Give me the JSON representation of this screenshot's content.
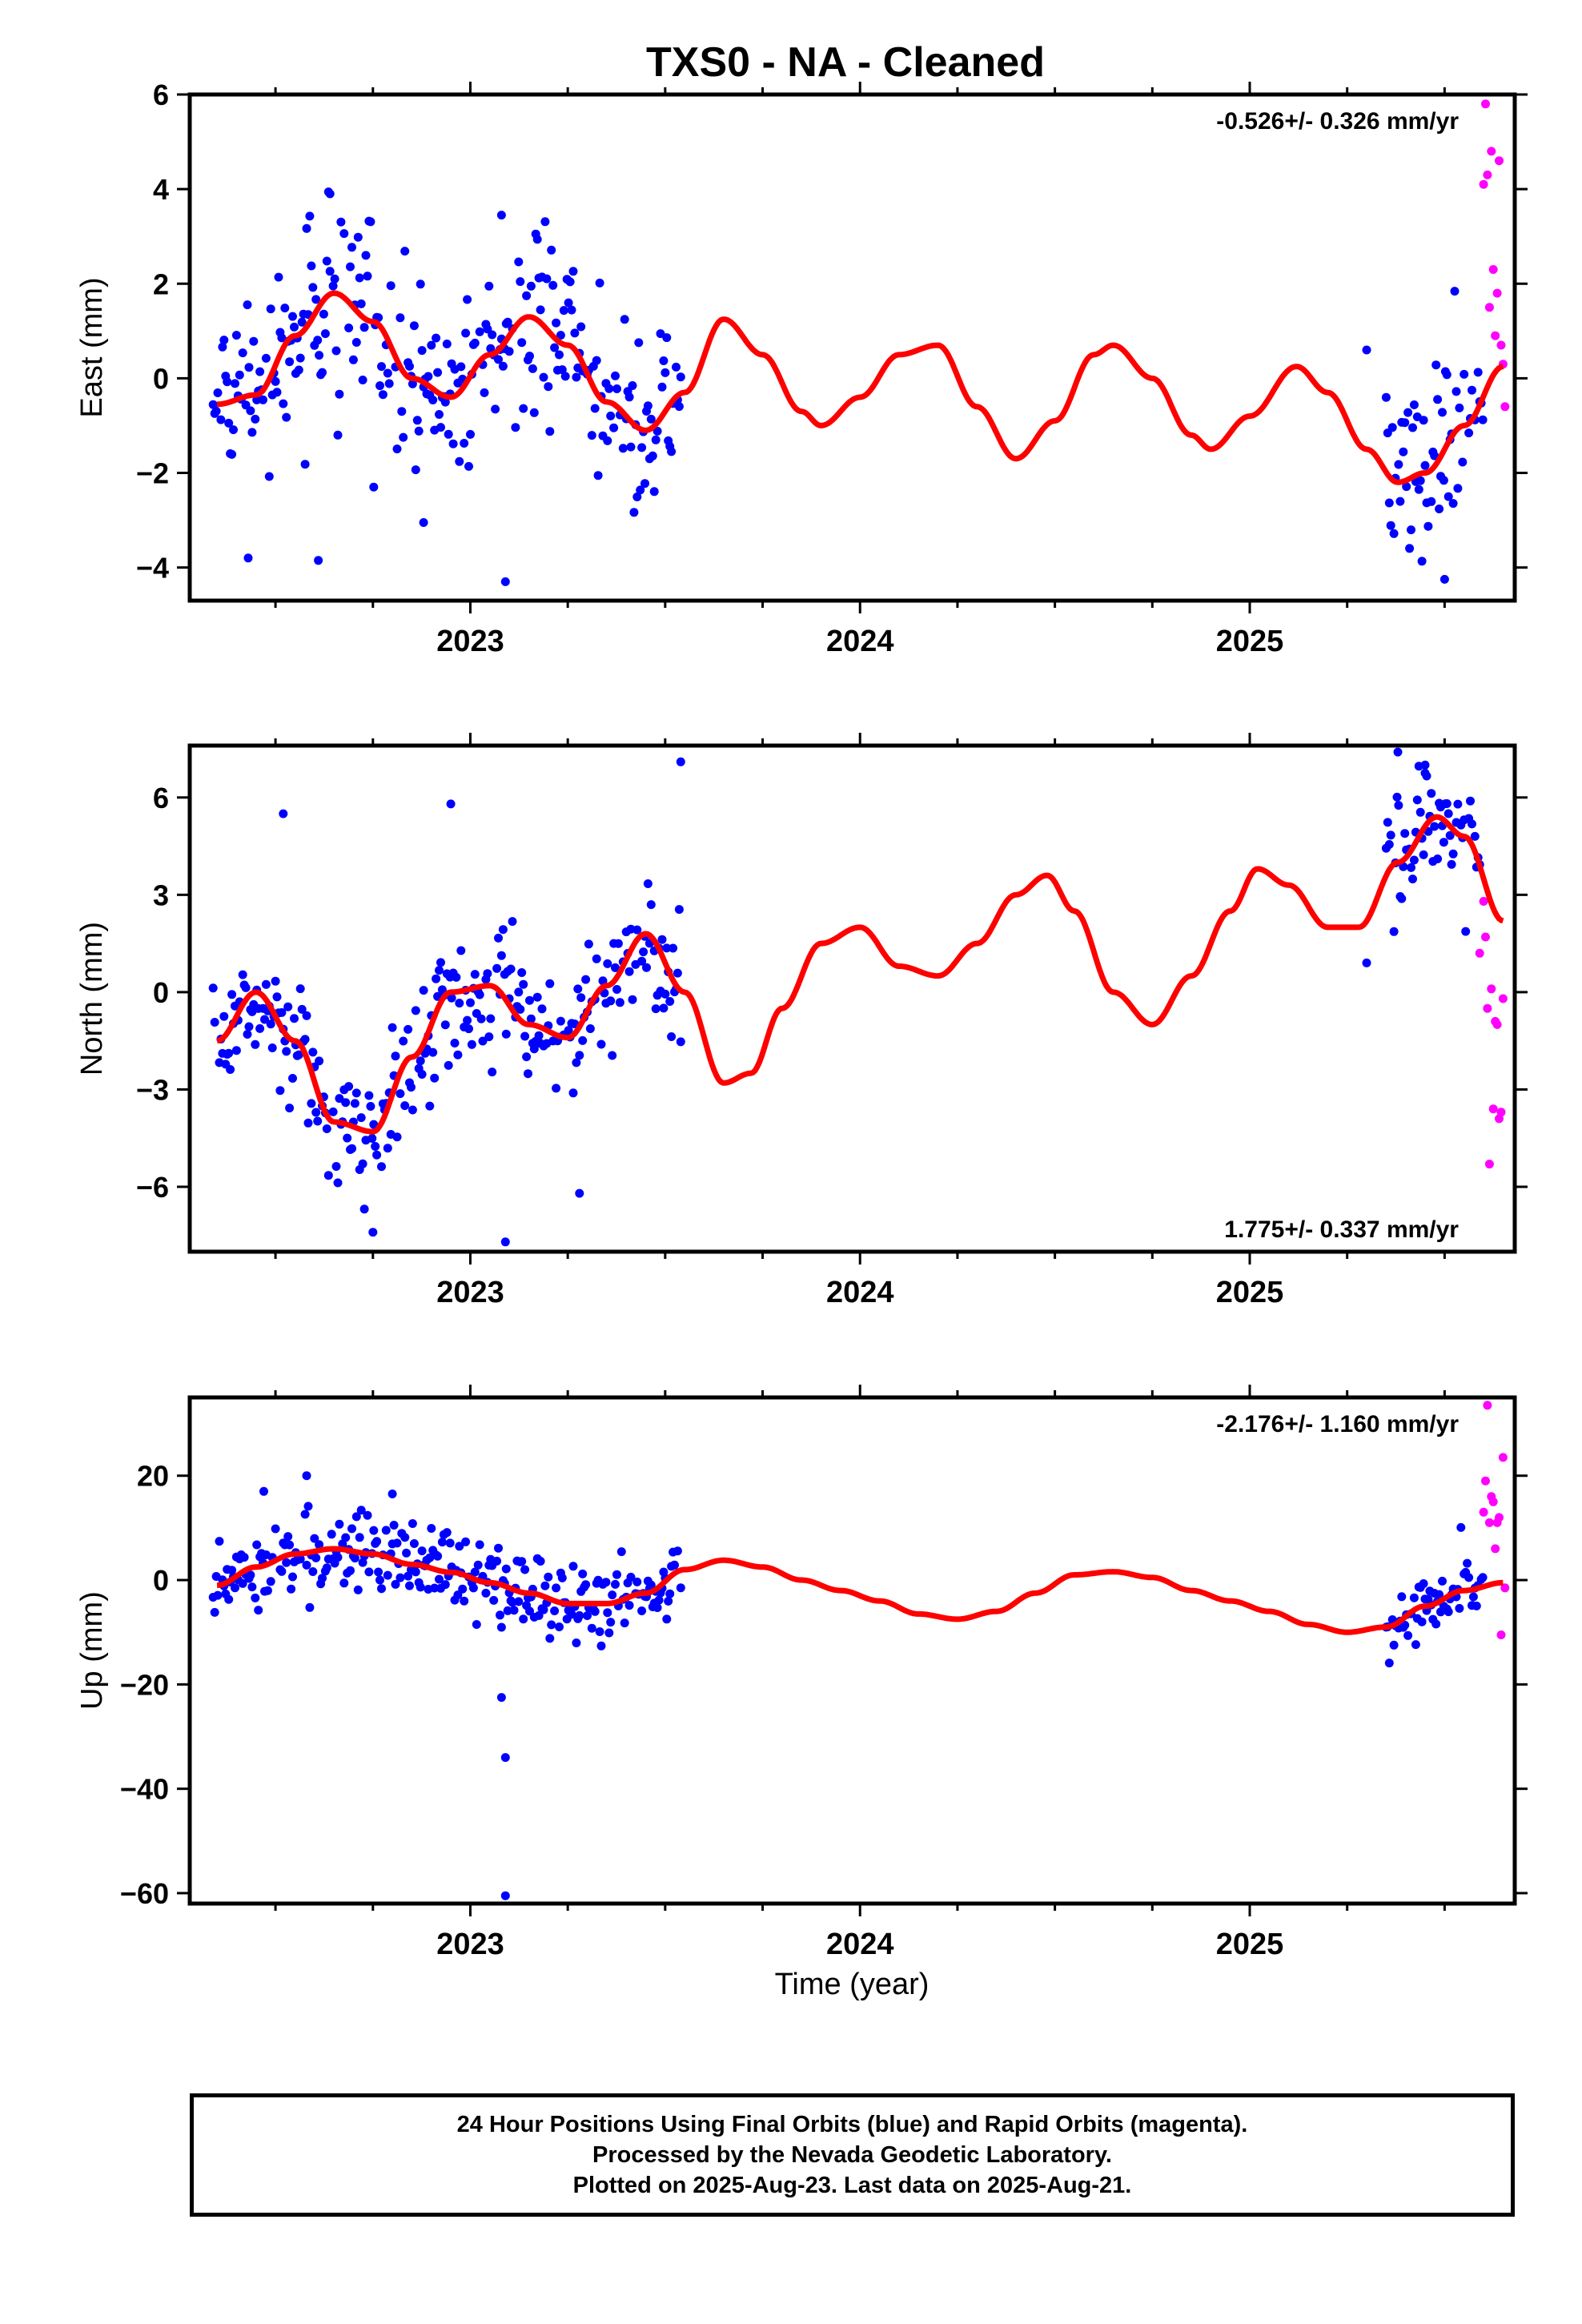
{
  "title": "TXS0  - NA - Cleaned",
  "colors": {
    "final": "#0000ff",
    "rapid": "#ff00ff",
    "model": "#ff0000"
  },
  "xaxis": {
    "label": "Time (year)",
    "range": [
      2022.28,
      2025.68
    ],
    "ticks": [
      2023,
      2024,
      2025
    ]
  },
  "footer": {
    "line1": "24 Hour Positions Using Final Orbits (blue) and Rapid Orbits (magenta).",
    "line2": "Processed by the Nevada Geodetic Laboratory.",
    "line3": "Plotted on 2025-Aug-23. Last data on 2025-Aug-21."
  },
  "chart_data": [
    {
      "type": "scatter",
      "ylabel": "East (mm)",
      "ylim": [
        -4.7,
        6.0
      ],
      "yticks": [
        -4,
        -2,
        0,
        2,
        4,
        6
      ],
      "rate": "-0.526+/- 0.326 mm/yr",
      "rate_position": "top-right",
      "model": {
        "x": [
          2022.35,
          2022.45,
          2022.55,
          2022.65,
          2022.75,
          2022.85,
          2022.95,
          2023.05,
          2023.15,
          2023.25,
          2023.35,
          2023.45,
          2023.55,
          2023.65,
          2023.75,
          2023.85,
          2023.9,
          2024.0,
          2024.1,
          2024.2,
          2024.3,
          2024.4,
          2024.5,
          2024.6,
          2024.65,
          2024.75,
          2024.85,
          2024.9,
          2025.0,
          2025.12,
          2025.2,
          2025.3,
          2025.38,
          2025.45,
          2025.55,
          2025.65
        ],
        "y": [
          -0.55,
          -0.35,
          0.9,
          1.8,
          1.2,
          0.0,
          -0.4,
          0.5,
          1.3,
          0.7,
          -0.5,
          -1.1,
          -0.3,
          1.25,
          0.5,
          -0.7,
          -1.0,
          -0.4,
          0.5,
          0.7,
          -0.6,
          -1.7,
          -0.9,
          0.5,
          0.7,
          0.0,
          -1.2,
          -1.5,
          -0.8,
          0.25,
          -0.3,
          -1.5,
          -2.2,
          -2.0,
          -1.0,
          0.25
        ]
      },
      "final": {
        "segments": [
          {
            "start": 2022.34,
            "end": 2023.54,
            "step": 0.004,
            "scatter": 1.0
          },
          {
            "start": 2025.35,
            "end": 2025.6,
            "step": 0.004,
            "scatter": 1.0
          }
        ],
        "extra": [
          [
            2025.3,
            0.6
          ],
          [
            2023.09,
            -4.3
          ],
          [
            2022.43,
            -3.8
          ],
          [
            2022.61,
            -3.85
          ],
          [
            2022.88,
            -3.05
          ],
          [
            2025.5,
            -4.25
          ],
          [
            2023.08,
            3.45
          ],
          [
            2022.64,
            3.9
          ]
        ]
      },
      "rapid": {
        "x": [
          2025.6,
          2025.605,
          2025.61,
          2025.615,
          2025.62,
          2025.625,
          2025.63,
          2025.635,
          2025.64,
          2025.645,
          2025.65,
          2025.655
        ],
        "y": [
          4.1,
          5.8,
          4.3,
          1.5,
          4.8,
          2.3,
          0.9,
          1.8,
          4.6,
          0.7,
          0.3,
          -0.6
        ]
      }
    },
    {
      "type": "scatter",
      "ylabel": "North (mm)",
      "ylim": [
        -8.0,
        7.6
      ],
      "yticks": [
        -6,
        -3,
        0,
        3,
        6
      ],
      "rate": "1.775+/- 0.337 mm/yr",
      "rate_position": "bottom-right",
      "model": {
        "x": [
          2022.35,
          2022.45,
          2022.55,
          2022.65,
          2022.75,
          2022.85,
          2022.95,
          2023.05,
          2023.15,
          2023.25,
          2023.35,
          2023.45,
          2023.55,
          2023.65,
          2023.72,
          2023.8,
          2023.9,
          2024.0,
          2024.1,
          2024.2,
          2024.3,
          2024.4,
          2024.48,
          2024.55,
          2024.65,
          2024.75,
          2024.85,
          2024.95,
          2025.02,
          2025.1,
          2025.2,
          2025.28,
          2025.38,
          2025.48,
          2025.55,
          2025.65
        ],
        "y": [
          -1.5,
          0.0,
          -1.5,
          -4.0,
          -4.3,
          -2.0,
          0.0,
          0.2,
          -1.0,
          -1.4,
          0.2,
          1.8,
          0.0,
          -2.8,
          -2.5,
          -0.5,
          1.5,
          2.0,
          0.8,
          0.5,
          1.5,
          3.0,
          3.6,
          2.5,
          0.0,
          -1.0,
          0.5,
          2.5,
          3.8,
          3.3,
          2.0,
          2.0,
          4.0,
          5.4,
          4.8,
          2.2
        ]
      },
      "final": {
        "segments": [
          {
            "start": 2022.34,
            "end": 2023.54,
            "step": 0.004,
            "scatter": 1.0
          },
          {
            "start": 2025.35,
            "end": 2025.6,
            "step": 0.004,
            "scatter": 1.0
          }
        ],
        "extra": [
          [
            2022.52,
            5.5
          ],
          [
            2022.95,
            5.8
          ],
          [
            2023.09,
            -7.7
          ],
          [
            2023.28,
            -6.2
          ],
          [
            2023.54,
            7.1
          ],
          [
            2025.3,
            0.9
          ],
          [
            2025.38,
            7.4
          ],
          [
            2025.45,
            7.0
          ],
          [
            2022.75,
            -7.4
          ]
        ]
      },
      "rapid": {
        "x": [
          2025.59,
          2025.6,
          2025.605,
          2025.61,
          2025.615,
          2025.62,
          2025.625,
          2025.63,
          2025.635,
          2025.64,
          2025.645,
          2025.65
        ],
        "y": [
          1.2,
          2.8,
          1.7,
          -0.5,
          -5.3,
          0.1,
          -3.6,
          -0.9,
          -1.0,
          -3.9,
          -3.7,
          -0.2
        ]
      }
    },
    {
      "type": "scatter",
      "ylabel": "Up (mm)",
      "ylim": [
        -62,
        35
      ],
      "yticks": [
        -60,
        -40,
        -20,
        0,
        20
      ],
      "rate": "-2.176+/- 1.160 mm/yr",
      "rate_position": "top-right",
      "model": {
        "x": [
          2022.35,
          2022.45,
          2022.55,
          2022.65,
          2022.75,
          2022.85,
          2022.95,
          2023.05,
          2023.15,
          2023.25,
          2023.35,
          2023.45,
          2023.55,
          2023.65,
          2023.75,
          2023.85,
          2023.95,
          2024.05,
          2024.15,
          2024.25,
          2024.35,
          2024.45,
          2024.55,
          2024.65,
          2024.75,
          2024.85,
          2024.95,
          2025.05,
          2025.15,
          2025.25,
          2025.35,
          2025.45,
          2025.55,
          2025.65
        ],
        "y": [
          -1.0,
          2.5,
          5.0,
          6.0,
          5.0,
          3.0,
          1.5,
          -0.5,
          -2.5,
          -4.5,
          -4.5,
          -2.5,
          2.0,
          3.8,
          2.5,
          0.0,
          -2.0,
          -4.0,
          -6.5,
          -7.5,
          -6.0,
          -2.5,
          1.0,
          1.6,
          0.5,
          -2.0,
          -4.0,
          -6.0,
          -8.5,
          -10.0,
          -9.0,
          -5.0,
          -2.0,
          -0.5
        ]
      },
      "final": {
        "segments": [
          {
            "start": 2022.34,
            "end": 2023.54,
            "step": 0.004,
            "scatter": 4.0
          },
          {
            "start": 2025.35,
            "end": 2025.6,
            "step": 0.004,
            "scatter": 3.5
          }
        ],
        "extra": [
          [
            2023.08,
            -22.5
          ],
          [
            2023.09,
            -34.0
          ],
          [
            2023.09,
            -60.5
          ],
          [
            2022.58,
            20.0
          ],
          [
            2022.47,
            17.0
          ],
          [
            2022.8,
            16.5
          ]
        ]
      },
      "rapid": {
        "x": [
          2025.6,
          2025.605,
          2025.61,
          2025.615,
          2025.62,
          2025.625,
          2025.63,
          2025.635,
          2025.64,
          2025.645,
          2025.65,
          2025.655
        ],
        "y": [
          13.0,
          19.0,
          33.5,
          11.0,
          16.0,
          15.0,
          6.0,
          11.0,
          12.0,
          -10.5,
          23.5,
          -1.5
        ]
      }
    }
  ]
}
